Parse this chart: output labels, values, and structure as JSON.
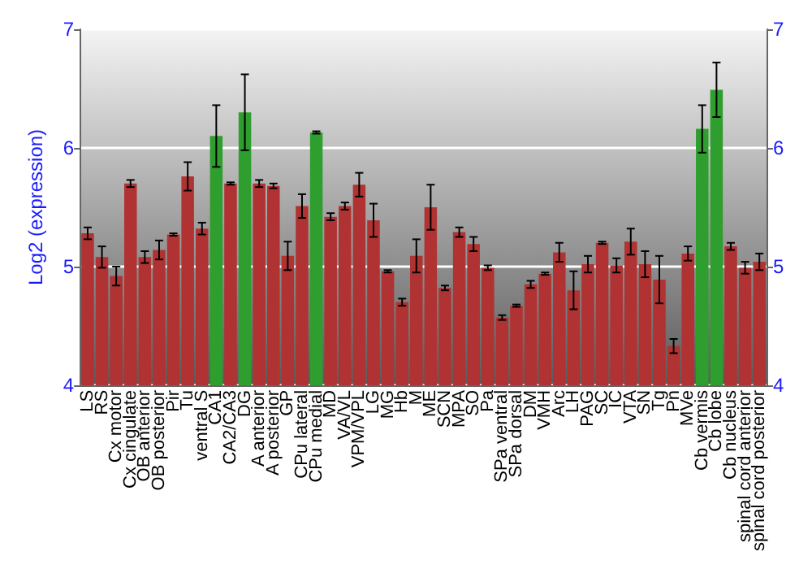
{
  "chart_data": {
    "type": "bar",
    "ylabel": "Log2 (expression)",
    "categories": [
      "LS",
      "RS",
      "Cx motor",
      "Cx cingulate",
      "OB anterior",
      "OB posterior",
      "Pir",
      "Tu",
      "ventral S",
      "CA1",
      "CA2/CA3",
      "DG",
      "A anterior",
      "A posterior",
      "GP",
      "CPu lateral",
      "CPu medial",
      "MD",
      "VA/VL",
      "VPM/VPL",
      "LG",
      "MG",
      "Hb",
      "M",
      "ME",
      "SCN",
      "MPA",
      "SO",
      "Pa",
      "SPa ventral",
      "SPa dorsal",
      "DM",
      "VMH",
      "Arc",
      "LH",
      "PAG",
      "SC",
      "IC",
      "VTA",
      "SN",
      "Tg",
      "Pn",
      "MVe",
      "Cb vermis",
      "Cb lobe",
      "Cb nucleus",
      "spinal cord anterior",
      "spinal cord posterior"
    ],
    "values": [
      5.28,
      5.08,
      4.92,
      5.7,
      5.08,
      5.14,
      5.27,
      5.76,
      5.32,
      6.1,
      5.7,
      6.3,
      5.7,
      5.68,
      5.09,
      5.51,
      6.13,
      5.42,
      5.51,
      5.69,
      5.39,
      4.96,
      4.7,
      5.09,
      5.5,
      4.82,
      5.29,
      5.19,
      4.99,
      4.57,
      4.67,
      4.85,
      4.94,
      5.12,
      4.8,
      5.02,
      5.2,
      5.01,
      5.21,
      5.02,
      4.89,
      4.33,
      5.11,
      6.16,
      6.49,
      5.17,
      4.99,
      5.04
    ],
    "errors": [
      0.05,
      0.09,
      0.08,
      0.03,
      0.05,
      0.08,
      0.01,
      0.12,
      0.05,
      0.26,
      0.01,
      0.32,
      0.03,
      0.02,
      0.12,
      0.1,
      0.01,
      0.03,
      0.03,
      0.1,
      0.14,
      0.01,
      0.03,
      0.14,
      0.19,
      0.02,
      0.04,
      0.06,
      0.02,
      0.02,
      0.01,
      0.03,
      0.01,
      0.08,
      0.16,
      0.07,
      0.01,
      0.06,
      0.11,
      0.11,
      0.2,
      0.06,
      0.06,
      0.2,
      0.23,
      0.03,
      0.05,
      0.07
    ],
    "colors": [
      "#b03232",
      "#b03232",
      "#b03232",
      "#b03232",
      "#b03232",
      "#b03232",
      "#b03232",
      "#b03232",
      "#b03232",
      "#2e9e2e",
      "#b03232",
      "#2e9e2e",
      "#b03232",
      "#b03232",
      "#b03232",
      "#b03232",
      "#2e9e2e",
      "#b03232",
      "#b03232",
      "#b03232",
      "#b03232",
      "#b03232",
      "#b03232",
      "#b03232",
      "#b03232",
      "#b03232",
      "#b03232",
      "#b03232",
      "#b03232",
      "#b03232",
      "#b03232",
      "#b03232",
      "#b03232",
      "#b03232",
      "#b03232",
      "#b03232",
      "#b03232",
      "#b03232",
      "#b03232",
      "#b03232",
      "#b03232",
      "#b03232",
      "#b03232",
      "#2e9e2e",
      "#2e9e2e",
      "#b03232",
      "#b03232",
      "#b03232"
    ],
    "ylim": [
      4,
      7
    ],
    "yticks": [
      4,
      5,
      6,
      7
    ],
    "y2lim": [
      4,
      7
    ],
    "y2ticks": [
      4,
      5,
      6,
      7
    ],
    "grid": "y"
  }
}
